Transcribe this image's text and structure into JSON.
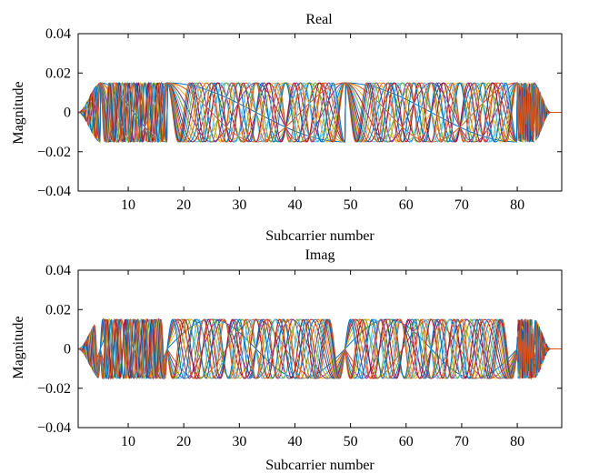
{
  "chart_data": [
    {
      "type": "line",
      "title": "Real",
      "xlabel": "Subcarrier number",
      "ylabel": "Magnitude",
      "xlim": [
        1,
        88
      ],
      "ylim": [
        -0.04,
        0.04
      ],
      "xticks": [
        10,
        20,
        30,
        40,
        50,
        60,
        70,
        80
      ],
      "xtick_labels": [
        "10",
        "20",
        "30",
        "40",
        "50",
        "60",
        "70",
        "80"
      ],
      "yticks": [
        -0.04,
        -0.02,
        0,
        0.02,
        0.04
      ],
      "ytick_labels": [
        "−0.04",
        "−0.02",
        "0",
        "0.02",
        "0.04"
      ],
      "grid": false,
      "legend": "none",
      "amplitude": 0.015,
      "taper_in": [
        1,
        5
      ],
      "taper_out": [
        83,
        86
      ],
      "segments": [
        [
          5,
          17
        ],
        [
          17,
          49
        ],
        [
          49,
          80
        ],
        [
          80,
          83
        ]
      ],
      "node_value": 0.015,
      "node_alternation": [
        1,
        1,
        1,
        -1,
        1
      ],
      "series_count": 16,
      "series": [
        {
          "name": "",
          "frequency": 0.5
        },
        {
          "name": "",
          "frequency": 1.0
        },
        {
          "name": "",
          "frequency": 1.5
        },
        {
          "name": "",
          "frequency": 2.0
        },
        {
          "name": "",
          "frequency": 2.5
        },
        {
          "name": "",
          "frequency": 3.0
        },
        {
          "name": "",
          "frequency": 3.5
        },
        {
          "name": "",
          "frequency": 4.0
        },
        {
          "name": "",
          "frequency": 4.5
        },
        {
          "name": "",
          "frequency": 5.0
        },
        {
          "name": "",
          "frequency": 5.5
        },
        {
          "name": "",
          "frequency": 6.0
        },
        {
          "name": "",
          "frequency": 6.5
        },
        {
          "name": "",
          "frequency": 7.0
        },
        {
          "name": "",
          "frequency": 7.5
        },
        {
          "name": "",
          "frequency": 8.0
        }
      ]
    },
    {
      "type": "line",
      "title": "Imag",
      "xlabel": "Subcarrier number",
      "ylabel": "Magnitude",
      "xlim": [
        1,
        88
      ],
      "ylim": [
        -0.04,
        0.04
      ],
      "xticks": [
        10,
        20,
        30,
        40,
        50,
        60,
        70,
        80
      ],
      "xtick_labels": [
        "10",
        "20",
        "30",
        "40",
        "50",
        "60",
        "70",
        "80"
      ],
      "yticks": [
        -0.04,
        -0.02,
        0,
        0.02,
        0.04
      ],
      "ytick_labels": [
        "−0.04",
        "−0.02",
        "0",
        "0.02",
        "0.04"
      ],
      "grid": false,
      "legend": "none",
      "amplitude": 0.015,
      "taper_in": [
        1,
        5
      ],
      "taper_out": [
        83,
        86
      ],
      "segments": [
        [
          5,
          17
        ],
        [
          17,
          49
        ],
        [
          49,
          80
        ],
        [
          80,
          83
        ]
      ],
      "node_value": 0,
      "series_count": 16,
      "series": [
        {
          "name": "",
          "frequency": 1.0
        },
        {
          "name": "",
          "frequency": 1.5
        },
        {
          "name": "",
          "frequency": 2.0
        },
        {
          "name": "",
          "frequency": 2.5
        },
        {
          "name": "",
          "frequency": 3.0
        },
        {
          "name": "",
          "frequency": 3.5
        },
        {
          "name": "",
          "frequency": 4.0
        },
        {
          "name": "",
          "frequency": 4.5
        },
        {
          "name": "",
          "frequency": 5.0
        },
        {
          "name": "",
          "frequency": 5.5
        },
        {
          "name": "",
          "frequency": 6.0
        },
        {
          "name": "",
          "frequency": 6.5
        },
        {
          "name": "",
          "frequency": 7.0
        },
        {
          "name": "",
          "frequency": 7.5
        },
        {
          "name": "",
          "frequency": 8.0
        },
        {
          "name": "",
          "frequency": 8.5
        }
      ]
    }
  ],
  "colors": [
    "#0072bd",
    "#d95319",
    "#edb120",
    "#7e2f8e",
    "#77ac30",
    "#4dbeee",
    "#a2142f"
  ]
}
